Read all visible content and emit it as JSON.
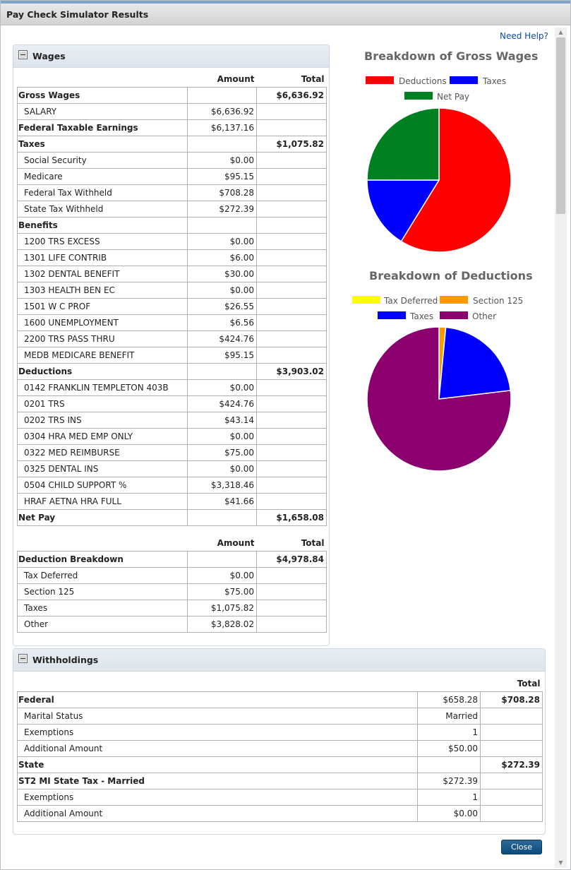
{
  "window_title": "Pay Check Simulator Results",
  "help_link": "Need Help?",
  "close_label": "Close",
  "colors": {
    "deductions": "#ff0000",
    "taxes": "#0000ff",
    "net_pay": "#008020",
    "tax_deferred": "#ffff00",
    "section_125": "#ff9900",
    "other": "#8b006e"
  },
  "wages": {
    "title": "Wages",
    "col_amount": "Amount",
    "col_total": "Total",
    "rows": [
      {
        "label": "Gross Wages",
        "amount": "",
        "total": "$6,636.92",
        "section": true
      },
      {
        "label": "SALARY",
        "amount": "$6,636.92",
        "total": "",
        "section": false
      },
      {
        "label": "Federal Taxable Earnings",
        "amount": "$6,137.16",
        "total": "",
        "section": true
      },
      {
        "label": "Taxes",
        "amount": "",
        "total": "$1,075.82",
        "section": true
      },
      {
        "label": "Social Security",
        "amount": "$0.00",
        "total": "",
        "section": false
      },
      {
        "label": "Medicare",
        "amount": "$95.15",
        "total": "",
        "section": false
      },
      {
        "label": "Federal Tax Withheld",
        "amount": "$708.28",
        "total": "",
        "section": false
      },
      {
        "label": "State Tax Withheld",
        "amount": "$272.39",
        "total": "",
        "section": false
      },
      {
        "label": "Benefits",
        "amount": "",
        "total": "",
        "section": true
      },
      {
        "label": "1200 TRS EXCESS",
        "amount": "$0.00",
        "total": "",
        "section": false
      },
      {
        "label": "1301 LIFE CONTRIB",
        "amount": "$6.00",
        "total": "",
        "section": false
      },
      {
        "label": "1302 DENTAL BENEFIT",
        "amount": "$30.00",
        "total": "",
        "section": false
      },
      {
        "label": "1303 HEALTH BEN EC",
        "amount": "$0.00",
        "total": "",
        "section": false
      },
      {
        "label": "1501 W C PROF",
        "amount": "$26.55",
        "total": "",
        "section": false
      },
      {
        "label": "1600 UNEMPLOYMENT",
        "amount": "$6.56",
        "total": "",
        "section": false
      },
      {
        "label": "2200 TRS PASS THRU",
        "amount": "$424.76",
        "total": "",
        "section": false
      },
      {
        "label": "MEDB MEDICARE BENEFIT",
        "amount": "$95.15",
        "total": "",
        "section": false
      },
      {
        "label": "Deductions",
        "amount": "",
        "total": "$3,903.02",
        "section": true
      },
      {
        "label": "0142 FRANKLIN TEMPLETON 403B",
        "amount": "$0.00",
        "total": "",
        "section": false
      },
      {
        "label": "0201 TRS",
        "amount": "$424.76",
        "total": "",
        "section": false
      },
      {
        "label": "0202 TRS INS",
        "amount": "$43.14",
        "total": "",
        "section": false
      },
      {
        "label": "0304 HRA MED EMP ONLY",
        "amount": "$0.00",
        "total": "",
        "section": false
      },
      {
        "label": "0322 MED REIMBURSE",
        "amount": "$75.00",
        "total": "",
        "section": false
      },
      {
        "label": "0325 DENTAL INS",
        "amount": "$0.00",
        "total": "",
        "section": false
      },
      {
        "label": "0504 CHILD SUPPORT %",
        "amount": "$3,318.46",
        "total": "",
        "section": false
      },
      {
        "label": "HRAF AETNA HRA FULL",
        "amount": "$41.66",
        "total": "",
        "section": false
      },
      {
        "label": "Net Pay",
        "amount": "",
        "total": "$1,658.08",
        "section": true
      }
    ]
  },
  "deduction_breakdown": {
    "col_amount": "Amount",
    "col_total": "Total",
    "rows": [
      {
        "label": "Deduction Breakdown",
        "amount": "",
        "total": "$4,978.84",
        "section": true
      },
      {
        "label": "Tax Deferred",
        "amount": "$0.00",
        "total": "",
        "section": false
      },
      {
        "label": "Section 125",
        "amount": "$75.00",
        "total": "",
        "section": false
      },
      {
        "label": "Taxes",
        "amount": "$1,075.82",
        "total": "",
        "section": false
      },
      {
        "label": "Other",
        "amount": "$3,828.02",
        "total": "",
        "section": false
      }
    ]
  },
  "withholdings": {
    "title": "Withholdings",
    "col_total": "Total",
    "rows": [
      {
        "label": "Federal",
        "amount": "$658.28",
        "total": "$708.28",
        "section": true
      },
      {
        "label": "Marital Status",
        "amount": "Married",
        "total": "",
        "section": false
      },
      {
        "label": "Exemptions",
        "amount": "1",
        "total": "",
        "section": false
      },
      {
        "label": "Additional Amount",
        "amount": "$50.00",
        "total": "",
        "section": false
      },
      {
        "label": "State",
        "amount": "",
        "total": "$272.39",
        "section": true
      },
      {
        "label": "ST2 MI State Tax - Married",
        "amount": "$272.39",
        "total": "",
        "section": true
      },
      {
        "label": "Exemptions",
        "amount": "1",
        "total": "",
        "section": false
      },
      {
        "label": "Additional Amount",
        "amount": "$0.00",
        "total": "",
        "section": false
      }
    ]
  },
  "chart_data": [
    {
      "type": "pie",
      "title": "Breakdown of Gross Wages",
      "legend_placement": "top",
      "categories": [
        "Deductions",
        "Taxes",
        "Net Pay"
      ],
      "values": [
        3903.02,
        1075.82,
        1658.08
      ],
      "colors": [
        "#ff0000",
        "#0000ff",
        "#008020"
      ]
    },
    {
      "type": "pie",
      "title": "Breakdown of Deductions",
      "legend_placement": "top",
      "categories": [
        "Tax Deferred",
        "Section 125",
        "Taxes",
        "Other"
      ],
      "values": [
        0.0,
        75.0,
        1075.82,
        3828.02
      ],
      "colors": [
        "#ffff00",
        "#ff9900",
        "#0000ff",
        "#8b006e"
      ]
    }
  ]
}
